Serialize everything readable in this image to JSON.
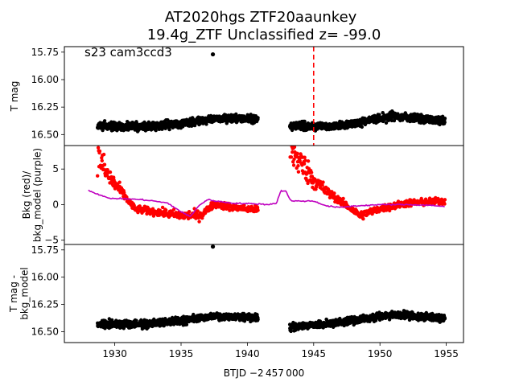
{
  "chart_data": {
    "type": "scatter",
    "title_line1": "AT2020hgs  ZTF20aaunkey",
    "title_line2": "19.4g_ZTF Unclassified z= -99.0",
    "annotation": "s23 cam3ccd3",
    "xlabel": "BTJD −2 457 000",
    "xlim": [
      1926.2,
      1956.3
    ],
    "xticks": [
      1930,
      1935,
      1940,
      1945,
      1950,
      1955
    ],
    "event_line_x": 1945.0,
    "event_line_color": "#ff0000",
    "gap": [
      1940.9,
      1943.1
    ],
    "segments": [
      [
        1928.7,
        1940.8
      ],
      [
        1943.2,
        1954.9
      ]
    ],
    "panels": [
      {
        "id": "top",
        "ylabel": "T mag",
        "ylim": [
          16.6,
          15.7
        ],
        "yticks": [
          "15.75",
          "16.00",
          "16.25",
          "16.50"
        ],
        "ytick_values": [
          15.75,
          16.0,
          16.25,
          16.5
        ],
        "series": [
          {
            "kind": "points",
            "color": "#000000",
            "base": 16.42,
            "spread": 0.05,
            "trend": [
              [
                1928.7,
                16.42
              ],
              [
                1932,
                16.43
              ],
              [
                1935,
                16.4
              ],
              [
                1937.5,
                16.35
              ],
              [
                1940.8,
                16.36
              ],
              [
                1943.2,
                16.42
              ],
              [
                1946,
                16.43
              ],
              [
                1948,
                16.4
              ],
              [
                1951,
                16.33
              ],
              [
                1954.9,
                16.38
              ]
            ],
            "outliers": [
              [
                1937.4,
                15.77
              ]
            ]
          }
        ]
      },
      {
        "id": "middle",
        "ylabel": "Bkg (red)/ bkg_model (purple)",
        "ylim": [
          -5.6,
          8.3
        ],
        "yticks": [
          "−5",
          "0",
          "5"
        ],
        "ytick_values": [
          -5,
          0,
          5
        ],
        "series": [
          {
            "kind": "points",
            "name": "Bkg",
            "color": "#ff0000",
            "trend": [
              [
                1928.7,
                7.0
              ],
              [
                1929.5,
                4.0
              ],
              [
                1930.5,
                1.8
              ],
              [
                1931.5,
                -0.6
              ],
              [
                1933,
                -1.0
              ],
              [
                1935,
                -1.5
              ],
              [
                1936.5,
                -1.5
              ],
              [
                1937.5,
                0.1
              ],
              [
                1939,
                -0.4
              ],
              [
                1940.8,
                -0.7
              ],
              [
                1943.2,
                7.8
              ],
              [
                1944,
                6.0
              ],
              [
                1945,
                3.5
              ],
              [
                1946,
                1.8
              ],
              [
                1947,
                0.5
              ],
              [
                1948.5,
                -1.5
              ],
              [
                1950,
                -0.6
              ],
              [
                1952,
                0.2
              ],
              [
                1954.9,
                0.5
              ]
            ]
          },
          {
            "kind": "line",
            "name": "bkg_model",
            "color": "#bf00bf",
            "trend": [
              [
                1928.0,
                2.0
              ],
              [
                1928.7,
                1.5
              ],
              [
                1929.5,
                0.9
              ],
              [
                1931,
                0.8
              ],
              [
                1932,
                0.7
              ],
              [
                1933,
                0.5
              ],
              [
                1934,
                0.2
              ],
              [
                1935,
                -1.0
              ],
              [
                1935.7,
                -1.7
              ],
              [
                1936.3,
                -0.2
              ],
              [
                1937,
                0.7
              ],
              [
                1938,
                0.4
              ],
              [
                1939,
                0.2
              ],
              [
                1940.8,
                0.1
              ],
              [
                1941.5,
                0.0
              ],
              [
                1942.2,
                0.2
              ],
              [
                1942.5,
                1.9
              ],
              [
                1942.9,
                1.9
              ],
              [
                1943.3,
                0.5
              ],
              [
                1944,
                0.5
              ],
              [
                1945,
                0.5
              ],
              [
                1946,
                -0.2
              ],
              [
                1947,
                -0.4
              ],
              [
                1948,
                -0.2
              ],
              [
                1950,
                0.0
              ],
              [
                1952,
                0.0
              ],
              [
                1954,
                -0.1
              ],
              [
                1954.9,
                -0.3
              ]
            ]
          }
        ]
      },
      {
        "id": "bottom",
        "ylabel": "T mag - bkg_model",
        "ylim": [
          16.6,
          15.7
        ],
        "yticks": [
          "15.75",
          "16.00",
          "16.25",
          "16.50"
        ],
        "ytick_values": [
          15.75,
          16.0,
          16.25,
          16.5
        ],
        "series": [
          {
            "kind": "points",
            "color": "#000000",
            "trend": [
              [
                1928.7,
                16.43
              ],
              [
                1932,
                16.43
              ],
              [
                1935,
                16.4
              ],
              [
                1937.5,
                16.36
              ],
              [
                1940.8,
                16.37
              ],
              [
                1943.2,
                16.46
              ],
              [
                1946,
                16.43
              ],
              [
                1948,
                16.4
              ],
              [
                1951,
                16.34
              ],
              [
                1954.9,
                16.38
              ]
            ],
            "outliers": [
              [
                1937.4,
                15.72
              ]
            ]
          }
        ]
      }
    ]
  }
}
